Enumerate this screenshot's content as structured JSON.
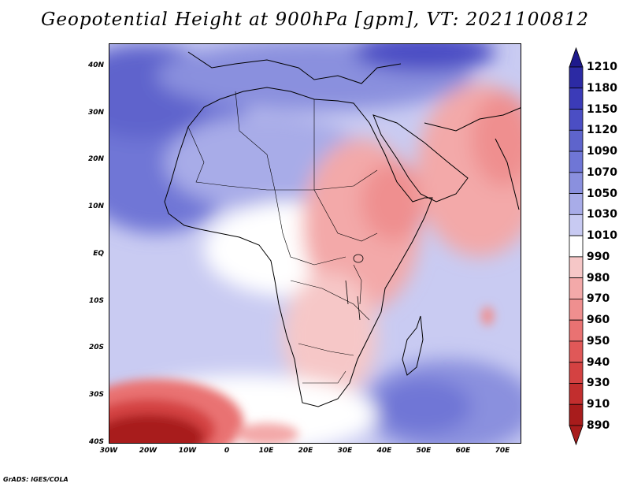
{
  "title": "Geopotential Height at 900hPa [gpm], VT: 2021100812",
  "footer": "GrADS: IGES/COLA",
  "map": {
    "lon_range": [
      -30,
      75
    ],
    "lat_range": [
      -40,
      45
    ],
    "lat_ticks": [
      "40N",
      "30N",
      "20N",
      "10N",
      "EQ",
      "10S",
      "20S",
      "30S",
      "40S"
    ],
    "lon_ticks": [
      "30W",
      "20W",
      "10W",
      "0",
      "10E",
      "20E",
      "30E",
      "40E",
      "50E",
      "60E",
      "70E"
    ]
  },
  "colorbar": {
    "levels": [
      "1210",
      "1180",
      "1150",
      "1120",
      "1090",
      "1070",
      "1050",
      "1030",
      "1010",
      "990",
      "980",
      "970",
      "960",
      "950",
      "940",
      "930",
      "910",
      "890"
    ],
    "colors": [
      "#1e1a8c",
      "#2c2aa4",
      "#3b3bb8",
      "#4b4ec4",
      "#5e64cc",
      "#6f76d6",
      "#8a90de",
      "#a8ace8",
      "#c8caf2",
      "#ffffff",
      "#f6c7c7",
      "#f3a9a9",
      "#ef8f8f",
      "#e97272",
      "#e05858",
      "#d44242",
      "#c22e2e",
      "#a81c1c"
    ]
  },
  "colors": {
    "background": "#ffffff",
    "coastline": "#000000"
  }
}
